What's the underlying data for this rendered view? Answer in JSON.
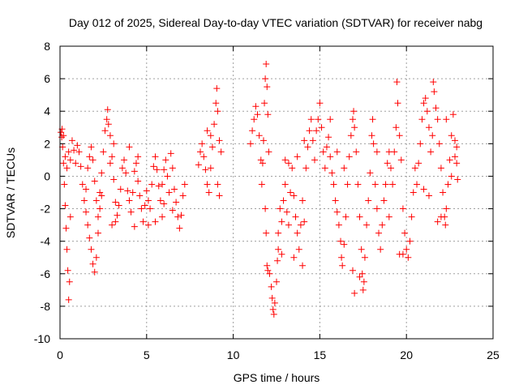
{
  "chart_data": {
    "type": "scatter",
    "title": "Day 012 of 2025, Sidereal Day-to-day VTEC variation (SDTVAR) for receiver nabg",
    "xlabel": "GPS time / hours",
    "ylabel": "SDTVAR / TECUs",
    "xlim": [
      0,
      25
    ],
    "ylim": [
      -10,
      8
    ],
    "x_ticks": [
      0,
      5,
      10,
      15,
      20,
      25
    ],
    "y_ticks": [
      -10,
      -8,
      -6,
      -4,
      -2,
      0,
      2,
      4,
      6,
      8
    ],
    "x_tick_labels": [
      "0",
      "5",
      "10",
      "15",
      "20",
      "25"
    ],
    "y_tick_labels": [
      "-10",
      "-8",
      "-6",
      "-4",
      "-2",
      "0",
      "2",
      "4",
      "6",
      "8"
    ],
    "grid": true,
    "marker": "+",
    "series": [
      {
        "name": "SDTVAR",
        "color": "#ff0000",
        "points": [
          [
            0.05,
            2.7
          ],
          [
            0.1,
            2.4
          ],
          [
            0.15,
            1.8
          ],
          [
            0.2,
            0.8
          ],
          [
            0.25,
            -0.5
          ],
          [
            0.3,
            -1.8
          ],
          [
            0.35,
            -3.2
          ],
          [
            0.4,
            -4.5
          ],
          [
            0.45,
            -5.8
          ],
          [
            0.5,
            -7.6
          ],
          [
            0.55,
            -6.5
          ],
          [
            0.6,
            -2.5
          ],
          [
            0.12,
            2.9
          ],
          [
            0.2,
            2.5
          ],
          [
            0.3,
            1.2
          ],
          [
            0.4,
            0.5
          ],
          [
            0.5,
            1.5
          ],
          [
            0.6,
            1.0
          ],
          [
            0.7,
            2.2
          ],
          [
            0.8,
            1.6
          ],
          [
            0.9,
            0.8
          ],
          [
            1.0,
            1.9
          ],
          [
            1.1,
            1.5
          ],
          [
            1.2,
            0.6
          ],
          [
            1.3,
            -0.5
          ],
          [
            1.4,
            -1.5
          ],
          [
            1.5,
            -2.2
          ],
          [
            1.6,
            -3.0
          ],
          [
            1.7,
            -3.8
          ],
          [
            1.8,
            -4.5
          ],
          [
            1.9,
            -5.4
          ],
          [
            2.0,
            -5.9
          ],
          [
            2.1,
            -5.0
          ],
          [
            2.2,
            -3.5
          ],
          [
            2.3,
            -2.0
          ],
          [
            2.4,
            -1.2
          ],
          [
            1.5,
            -0.8
          ],
          [
            1.6,
            0.5
          ],
          [
            1.7,
            1.2
          ],
          [
            1.8,
            1.8
          ],
          [
            1.9,
            1.0
          ],
          [
            2.0,
            -0.3
          ],
          [
            2.1,
            -1.5
          ],
          [
            2.2,
            -2.5
          ],
          [
            2.3,
            -1.0
          ],
          [
            2.4,
            0.2
          ],
          [
            2.5,
            1.5
          ],
          [
            2.6,
            2.8
          ],
          [
            2.7,
            3.5
          ],
          [
            2.75,
            4.1
          ],
          [
            2.8,
            3.2
          ],
          [
            2.9,
            2.5
          ],
          [
            3.0,
            1.2
          ],
          [
            3.1,
            -0.2
          ],
          [
            3.2,
            -1.6
          ],
          [
            3.3,
            -2.4
          ],
          [
            3.4,
            -1.8
          ],
          [
            3.5,
            -0.8
          ],
          [
            3.6,
            0.5
          ],
          [
            3.7,
            1.0
          ],
          [
            3.8,
            0.2
          ],
          [
            3.9,
            -0.9
          ],
          [
            4.0,
            -1.5
          ],
          [
            4.1,
            -2.2
          ],
          [
            4.2,
            -1.0
          ],
          [
            4.3,
            0.3
          ],
          [
            4.4,
            0.8
          ],
          [
            4.5,
            -0.3
          ],
          [
            4.6,
            -1.2
          ],
          [
            4.7,
            -2.0
          ],
          [
            4.8,
            -2.8
          ],
          [
            4.9,
            -1.8
          ],
          [
            5.0,
            -0.9
          ],
          [
            5.1,
            -1.5
          ],
          [
            5.2,
            -2.0
          ],
          [
            5.3,
            -0.5
          ],
          [
            5.4,
            0.6
          ],
          [
            5.5,
            1.2
          ],
          [
            5.6,
            0.4
          ],
          [
            5.7,
            -0.6
          ],
          [
            5.8,
            -1.5
          ],
          [
            5.9,
            -0.5
          ],
          [
            6.0,
            0.4
          ],
          [
            6.1,
            1.0
          ],
          [
            6.2,
            0.0
          ],
          [
            6.3,
            -1.0
          ],
          [
            6.4,
            1.4
          ],
          [
            6.5,
            0.5
          ],
          [
            6.6,
            -0.8
          ],
          [
            6.7,
            -1.6
          ],
          [
            6.8,
            -2.5
          ],
          [
            6.9,
            -3.2
          ],
          [
            7.0,
            -2.4
          ],
          [
            7.1,
            -1.2
          ],
          [
            7.2,
            -0.5
          ],
          [
            3.0,
            -3.0
          ],
          [
            3.2,
            -2.8
          ],
          [
            2.9,
            0.8
          ],
          [
            3.1,
            2.0
          ],
          [
            4.3,
            -3.1
          ],
          [
            5.1,
            -3.0
          ],
          [
            5.9,
            -2.5
          ],
          [
            6.0,
            -1.7
          ],
          [
            6.5,
            -2.1
          ],
          [
            4.0,
            1.8
          ],
          [
            4.5,
            1.2
          ],
          [
            5.5,
            -2.8
          ],
          [
            8.0,
            0.7
          ],
          [
            8.1,
            1.5
          ],
          [
            8.2,
            2.0
          ],
          [
            8.3,
            1.2
          ],
          [
            8.4,
            0.4
          ],
          [
            8.5,
            -0.5
          ],
          [
            8.6,
            -1.0
          ],
          [
            8.7,
            0.5
          ],
          [
            8.8,
            1.8
          ],
          [
            8.9,
            3.2
          ],
          [
            9.0,
            4.5
          ],
          [
            9.05,
            5.4
          ],
          [
            9.1,
            4.0
          ],
          [
            9.2,
            2.2
          ],
          [
            9.1,
            -0.5
          ],
          [
            9.2,
            -1.2
          ],
          [
            9.3,
            1.5
          ],
          [
            8.5,
            2.8
          ],
          [
            8.7,
            2.5
          ],
          [
            11.0,
            2.0
          ],
          [
            11.1,
            2.8
          ],
          [
            11.2,
            3.5
          ],
          [
            11.3,
            4.3
          ],
          [
            11.4,
            3.8
          ],
          [
            11.5,
            2.5
          ],
          [
            11.6,
            1.0
          ],
          [
            11.65,
            -0.5
          ],
          [
            11.7,
            0.8
          ],
          [
            11.75,
            2.2
          ],
          [
            11.8,
            4.5
          ],
          [
            11.85,
            6.0
          ],
          [
            11.9,
            6.9
          ],
          [
            11.95,
            5.5
          ],
          [
            12.0,
            3.8
          ],
          [
            12.05,
            1.5
          ],
          [
            11.85,
            -2.0
          ],
          [
            11.9,
            -3.5
          ],
          [
            11.95,
            -5.5
          ],
          [
            12.0,
            -5.8
          ],
          [
            12.1,
            -6.0
          ],
          [
            12.2,
            -6.8
          ],
          [
            12.25,
            -7.5
          ],
          [
            12.3,
            -8.2
          ],
          [
            12.35,
            -8.5
          ],
          [
            12.4,
            -7.8
          ],
          [
            12.5,
            -6.5
          ],
          [
            12.55,
            -5.2
          ],
          [
            12.6,
            -3.5
          ],
          [
            12.7,
            -2.0
          ],
          [
            12.8,
            -2.8
          ],
          [
            12.9,
            -1.5
          ],
          [
            13.0,
            -0.5
          ],
          [
            13.1,
            -2.2
          ],
          [
            13.2,
            -3.0
          ],
          [
            13.3,
            -1.0
          ],
          [
            13.4,
            0.5
          ],
          [
            13.5,
            -1.2
          ],
          [
            13.6,
            -2.5
          ],
          [
            13.7,
            -3.5
          ],
          [
            13.8,
            -4.5
          ],
          [
            13.9,
            -3.0
          ],
          [
            14.0,
            -1.5
          ],
          [
            12.6,
            -4.5
          ],
          [
            12.8,
            -4.8
          ],
          [
            13.0,
            1.0
          ],
          [
            13.2,
            0.8
          ],
          [
            13.5,
            -5.0
          ],
          [
            14.0,
            -5.5
          ],
          [
            14.1,
            -2.8
          ],
          [
            14.2,
            0.5
          ],
          [
            14.3,
            1.8
          ],
          [
            14.4,
            2.8
          ],
          [
            14.5,
            3.5
          ],
          [
            14.6,
            2.2
          ],
          [
            14.7,
            1.0
          ],
          [
            14.8,
            2.8
          ],
          [
            14.9,
            3.5
          ],
          [
            15.0,
            4.5
          ],
          [
            15.1,
            3.0
          ],
          [
            15.2,
            1.5
          ],
          [
            15.3,
            0.5
          ],
          [
            15.4,
            1.8
          ],
          [
            15.5,
            2.4
          ],
          [
            15.6,
            1.2
          ],
          [
            15.7,
            0.2
          ],
          [
            15.8,
            -0.5
          ],
          [
            15.9,
            -1.5
          ],
          [
            16.0,
            -2.2
          ],
          [
            16.1,
            -3.0
          ],
          [
            16.2,
            -4.0
          ],
          [
            16.25,
            -5.0
          ],
          [
            16.3,
            -5.5
          ],
          [
            16.4,
            -4.2
          ],
          [
            16.5,
            -2.5
          ],
          [
            16.6,
            -0.5
          ],
          [
            16.7,
            1.2
          ],
          [
            16.8,
            2.5
          ],
          [
            16.9,
            3.5
          ],
          [
            16.95,
            4.0
          ],
          [
            17.0,
            3.0
          ],
          [
            17.1,
            1.5
          ],
          [
            17.2,
            -0.5
          ],
          [
            17.3,
            -2.5
          ],
          [
            17.4,
            -4.5
          ],
          [
            17.45,
            -6.0
          ],
          [
            17.5,
            -7.0
          ],
          [
            17.55,
            -6.5
          ],
          [
            17.6,
            -5.0
          ],
          [
            17.7,
            -3.0
          ],
          [
            17.0,
            -7.2
          ],
          [
            16.9,
            -5.8
          ],
          [
            17.3,
            -6.2
          ],
          [
            17.8,
            -1.5
          ],
          [
            17.9,
            0.2
          ],
          [
            18.0,
            2.5
          ],
          [
            18.05,
            3.5
          ],
          [
            18.1,
            2.0
          ],
          [
            18.2,
            -0.5
          ],
          [
            18.3,
            -2.0
          ],
          [
            18.4,
            -3.5
          ],
          [
            18.5,
            -4.5
          ],
          [
            18.6,
            -3.0
          ],
          [
            18.7,
            -1.5
          ],
          [
            18.8,
            -0.5
          ],
          [
            18.9,
            0.8
          ],
          [
            19.0,
            1.5
          ],
          [
            19.1,
            0.5
          ],
          [
            19.2,
            -0.5
          ],
          [
            19.3,
            1.5
          ],
          [
            19.4,
            3.0
          ],
          [
            19.45,
            5.8
          ],
          [
            19.5,
            4.5
          ],
          [
            19.6,
            2.5
          ],
          [
            19.7,
            1.0
          ],
          [
            19.8,
            -2.0
          ],
          [
            19.9,
            -3.5
          ],
          [
            20.0,
            -4.5
          ],
          [
            20.1,
            -5.0
          ],
          [
            20.2,
            -4.0
          ],
          [
            19.6,
            -4.8
          ],
          [
            19.8,
            -4.8
          ],
          [
            20.3,
            -2.5
          ],
          [
            20.4,
            -1.0
          ],
          [
            20.5,
            0.5
          ],
          [
            20.6,
            -0.5
          ],
          [
            20.7,
            0.8
          ],
          [
            20.8,
            2.0
          ],
          [
            20.9,
            3.5
          ],
          [
            21.0,
            4.5
          ],
          [
            21.1,
            4.8
          ],
          [
            21.2,
            4.0
          ],
          [
            21.3,
            3.0
          ],
          [
            21.4,
            1.5
          ],
          [
            21.5,
            2.5
          ],
          [
            21.55,
            5.8
          ],
          [
            21.6,
            5.2
          ],
          [
            21.7,
            4.2
          ],
          [
            21.8,
            3.5
          ],
          [
            21.9,
            2.0
          ],
          [
            22.0,
            0.5
          ],
          [
            22.1,
            -1.0
          ],
          [
            22.2,
            -2.5
          ],
          [
            22.25,
            -3.0
          ],
          [
            22.3,
            -2.0
          ],
          [
            22.4,
            -0.5
          ],
          [
            22.5,
            1.0
          ],
          [
            22.6,
            2.5
          ],
          [
            22.7,
            3.8
          ],
          [
            22.8,
            2.2
          ],
          [
            22.9,
            0.8
          ],
          [
            22.95,
            -0.2
          ],
          [
            21.0,
            -0.8
          ],
          [
            21.3,
            -1.2
          ],
          [
            21.8,
            -2.8
          ],
          [
            22.0,
            -2.5
          ],
          [
            22.3,
            3.5
          ],
          [
            22.6,
            0.0
          ],
          [
            22.8,
            1.2
          ],
          [
            22.9,
            1.8
          ],
          [
            15.6,
            3.5
          ],
          [
            16.0,
            1.5
          ],
          [
            16.4,
            0.5
          ],
          [
            18.3,
            1.5
          ],
          [
            19.0,
            -2.5
          ],
          [
            13.7,
            1.2
          ],
          [
            14.1,
            2.2
          ]
        ]
      }
    ]
  }
}
